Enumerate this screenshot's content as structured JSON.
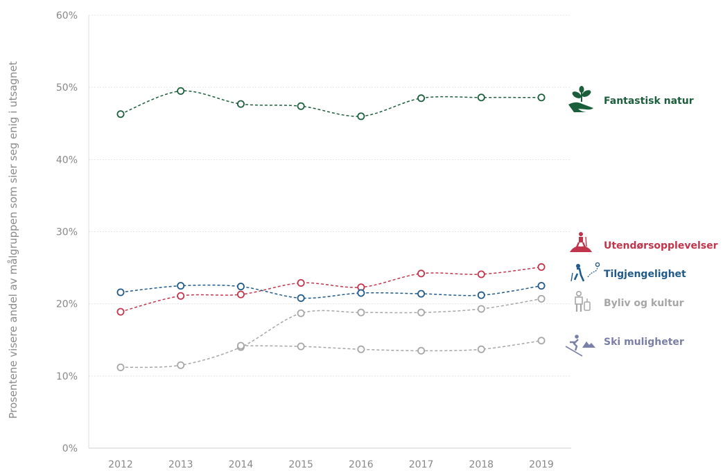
{
  "chart_data": {
    "type": "line",
    "title": "",
    "xlabel": "",
    "ylabel": "Prosentene visere andel av målgruppen som sier seg enig i utsagnet",
    "categories": [
      "2012",
      "2013",
      "2014",
      "2015",
      "2016",
      "2017",
      "2018",
      "2019"
    ],
    "ylim": [
      0,
      60
    ],
    "yticks": [
      "0%",
      "10%",
      "20%",
      "30%",
      "40%",
      "50%",
      "60%"
    ],
    "grid": true,
    "legend_placement": "right, next to line ends",
    "series": [
      {
        "name": "Fantastisk natur",
        "color": "#1b5e3b",
        "icon": "plant-in-hand-icon",
        "values": [
          46.3,
          49.5,
          47.7,
          47.4,
          46.0,
          48.5,
          48.6,
          48.6
        ]
      },
      {
        "name": "Utendørsopplevelser",
        "color": "#c0354b",
        "icon": "hiker-on-mountain-icon",
        "values": [
          18.9,
          21.1,
          21.3,
          22.9,
          22.3,
          24.2,
          24.1,
          25.1
        ]
      },
      {
        "name": "Tilgjengelighet",
        "color": "#1f5a8a",
        "icon": "traveler-with-route-icon",
        "values": [
          21.6,
          22.5,
          22.4,
          20.8,
          21.5,
          21.4,
          21.2,
          22.5
        ]
      },
      {
        "name": "Byliv og kultur",
        "color": "#a6a6a6",
        "icon": "traveler-with-luggage-icon",
        "values": [
          11.2,
          11.5,
          14.0,
          18.7,
          18.8,
          18.8,
          19.3,
          20.7
        ]
      },
      {
        "name": "Ski muligheter",
        "color": "#a6a6a6",
        "label_color": "#7a7fa6",
        "icon": "skier-mountain-icon",
        "values": [
          null,
          null,
          14.2,
          14.1,
          13.7,
          13.5,
          13.7,
          14.9
        ]
      }
    ]
  }
}
